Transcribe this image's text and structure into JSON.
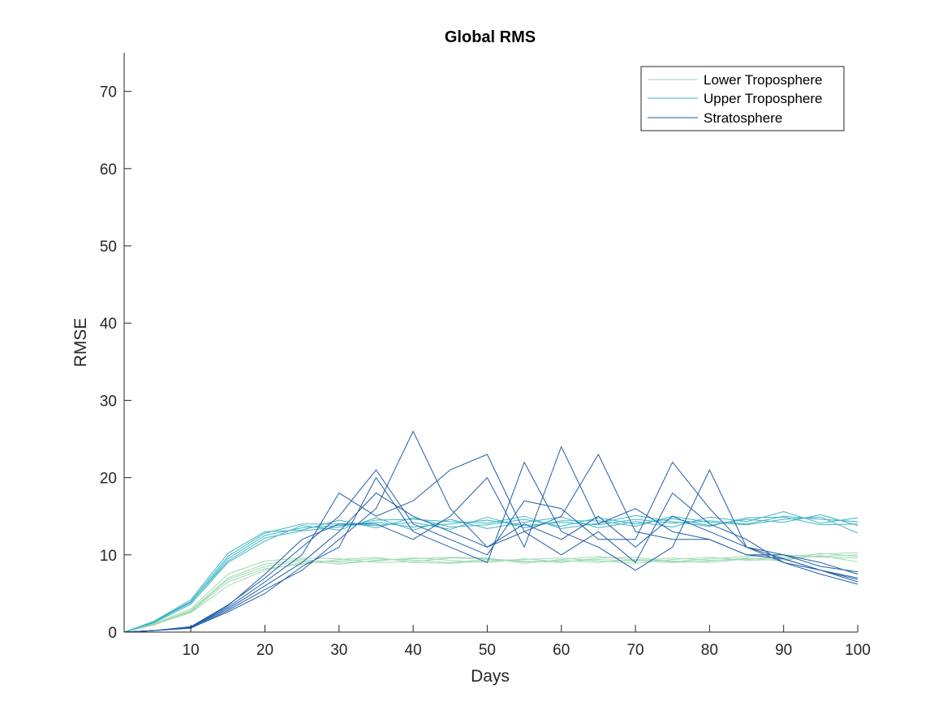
{
  "chart_data": {
    "type": "line",
    "title": "Global RMS",
    "xlabel": "Days",
    "ylabel": "RMSE",
    "xlim": [
      1,
      100
    ],
    "ylim": [
      0,
      75
    ],
    "xticks": [
      10,
      20,
      30,
      40,
      50,
      60,
      70,
      80,
      90,
      100
    ],
    "yticks": [
      0,
      10,
      20,
      30,
      40,
      50,
      60,
      70
    ],
    "grid": false,
    "legend_position": "top-right",
    "note": "Each series is an ensemble of many member curves; values below are approximate representative members read from the plot.",
    "x": [
      1,
      5,
      10,
      15,
      20,
      25,
      30,
      35,
      40,
      45,
      50,
      55,
      60,
      65,
      70,
      75,
      80,
      85,
      90,
      95,
      100
    ],
    "series": [
      {
        "name": "Lower Troposphere",
        "color": "#a1dab4",
        "members": [
          [
            0,
            1,
            2.5,
            6,
            8,
            9,
            9.2,
            9.5,
            9.3,
            9.0,
            9.4,
            9.1,
            9.3,
            9.0,
            9.4,
            9.2,
            9.0,
            9.5,
            9.6,
            9.8,
            10.0
          ],
          [
            0,
            1,
            2.8,
            7,
            8.8,
            9.4,
            9.0,
            9.2,
            9.6,
            9.3,
            9.0,
            9.5,
            9.1,
            9.4,
            9.2,
            9.6,
            9.3,
            9.4,
            9.8,
            10.1,
            10.3
          ],
          [
            0,
            1.1,
            3.0,
            7.5,
            9.2,
            9.6,
            9.5,
            9.0,
            9.1,
            9.6,
            9.5,
            9.2,
            9.0,
            9.6,
            9.7,
            9.1,
            9.5,
            9.8,
            10.0,
            9.7,
            9.6
          ],
          [
            0,
            0.9,
            2.6,
            6.5,
            8.2,
            8.8,
            9.4,
            9.7,
            9.0,
            8.9,
            9.2,
            9.4,
            9.6,
            9.2,
            8.9,
            9.4,
            9.7,
            9.3,
            9.4,
            9.9,
            9.1
          ],
          [
            0,
            1.0,
            2.7,
            6.8,
            8.5,
            9.2,
            8.8,
            9.3,
            9.5,
            9.7,
            9.6,
            8.9,
            9.4,
            9.8,
            9.3,
            9.0,
            9.2,
            9.6,
            9.2,
            10.2,
            9.8
          ]
        ]
      },
      {
        "name": "Upper Troposphere",
        "color": "#41b6c4",
        "members": [
          [
            0,
            1.3,
            3.8,
            9.5,
            12.5,
            13.5,
            13.8,
            14.2,
            13.6,
            14.0,
            14.5,
            13.8,
            14.2,
            13.9,
            14.6,
            14.1,
            14.4,
            14.0,
            15.0,
            14.6,
            14.3
          ],
          [
            0,
            1.4,
            4.2,
            10.2,
            13.0,
            13.2,
            14.5,
            13.5,
            14.8,
            13.6,
            13.9,
            14.6,
            13.7,
            14.8,
            14.0,
            14.7,
            13.8,
            14.6,
            14.2,
            15.2,
            13.8
          ],
          [
            0,
            1.2,
            3.6,
            9.0,
            11.8,
            13.8,
            13.2,
            14.8,
            13.2,
            14.6,
            13.4,
            14.2,
            14.9,
            13.5,
            14.3,
            13.6,
            14.9,
            14.3,
            15.6,
            14.1,
            14.8
          ],
          [
            0,
            1.35,
            4.0,
            9.8,
            12.8,
            14.0,
            14.0,
            13.8,
            14.2,
            13.3,
            14.9,
            13.5,
            14.4,
            14.4,
            13.7,
            15.0,
            14.2,
            13.9,
            14.6,
            14.9,
            12.8
          ],
          [
            0,
            1.25,
            3.9,
            9.2,
            12.2,
            13.1,
            13.6,
            14.5,
            14.6,
            14.3,
            14.1,
            15.0,
            13.4,
            14.1,
            15.1,
            14.3,
            13.7,
            14.8,
            14.9,
            13.9,
            14.0
          ]
        ]
      },
      {
        "name": "Stratosphere",
        "color": "#225ea8",
        "members": [
          [
            0,
            0.2,
            0.6,
            3,
            6,
            9,
            13,
            18,
            15,
            13,
            11,
            14,
            12,
            15,
            11,
            15,
            13,
            11,
            9.5,
            8,
            7
          ],
          [
            0,
            0.2,
            0.7,
            3.5,
            7,
            11,
            15,
            21,
            14,
            12,
            10,
            17,
            16,
            12,
            12,
            22,
            16,
            11,
            9,
            8,
            6.5
          ],
          [
            0,
            0.2,
            0.5,
            2.8,
            5.5,
            8,
            12,
            16,
            26,
            16,
            11,
            13,
            15,
            23,
            13,
            12,
            12,
            10,
            10,
            9,
            7.5
          ],
          [
            0,
            0.2,
            0.6,
            3.2,
            6.5,
            10,
            18,
            15,
            17,
            21,
            23,
            13,
            10,
            13,
            9,
            18,
            14,
            12,
            9,
            7.5,
            6.2
          ],
          [
            0,
            0.2,
            0.55,
            2.6,
            5,
            8.5,
            11,
            20,
            13,
            11,
            9,
            22,
            13,
            11,
            8,
            11,
            21,
            11,
            10,
            8.5,
            7.8
          ],
          [
            0,
            0.2,
            0.65,
            3.4,
            7.5,
            12,
            14,
            14,
            12,
            15,
            20,
            11,
            24,
            14,
            16,
            13,
            12,
            10,
            9.5,
            8,
            6.8
          ]
        ]
      }
    ]
  }
}
